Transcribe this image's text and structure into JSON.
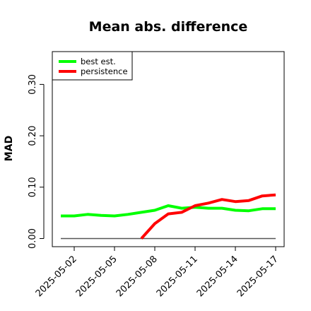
{
  "chart_data": {
    "type": "line",
    "title": "Mean abs. difference",
    "xlabel": "",
    "ylabel": "MAD",
    "x": [
      "2025-05-01",
      "2025-05-02",
      "2025-05-03",
      "2025-05-04",
      "2025-05-05",
      "2025-05-06",
      "2025-05-07",
      "2025-05-08",
      "2025-05-09",
      "2025-05-10",
      "2025-05-11",
      "2025-05-12",
      "2025-05-13",
      "2025-05-14",
      "2025-05-15",
      "2025-05-16",
      "2025-05-17"
    ],
    "x_tick_labels": [
      "2025-05-02",
      "2025-05-05",
      "2025-05-08",
      "2025-05-11",
      "2025-05-14",
      "2025-05-17"
    ],
    "ylim": [
      0,
      0.33
    ],
    "y_ticks": [
      0.0,
      0.1,
      0.2,
      0.3
    ],
    "y_tick_labels": [
      "0.00",
      "0.10",
      "0.20",
      "0.30"
    ],
    "series": [
      {
        "name": "best est.",
        "color": "#00ff00",
        "values": [
          0.044,
          0.044,
          0.047,
          0.045,
          0.044,
          0.047,
          0.051,
          0.055,
          0.064,
          0.059,
          0.061,
          0.059,
          0.059,
          0.055,
          0.054,
          0.058,
          0.058
        ]
      },
      {
        "name": "persistence",
        "color": "#ff0000",
        "values": [
          null,
          null,
          null,
          null,
          null,
          null,
          0.0,
          0.029,
          0.048,
          0.051,
          0.064,
          0.069,
          0.076,
          0.072,
          0.074,
          0.083,
          0.085
        ]
      }
    ],
    "reference_line": {
      "value": 0.0,
      "color": "#555555"
    },
    "legend": "top-left",
    "grid": false
  }
}
